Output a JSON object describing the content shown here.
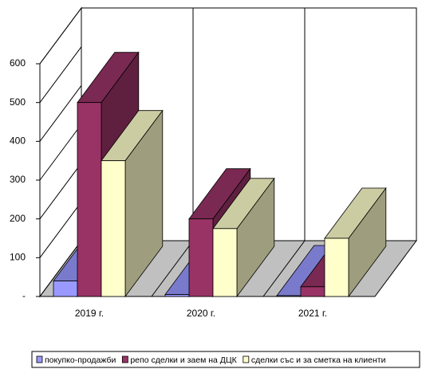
{
  "chart_data": {
    "type": "bar3d",
    "categories": [
      "2019 г.",
      "2020 г.",
      "2021 г."
    ],
    "series": [
      {
        "name": "покупко-продажби",
        "color": "#9999ff",
        "values": [
          40,
          5,
          2
        ]
      },
      {
        "name": "репо сделки и заем на ДЦК",
        "color": "#993366",
        "values": [
          500,
          200,
          25
        ]
      },
      {
        "name": "сделки със и за сметка на клиенти",
        "color": "#ffffcc",
        "values": [
          350,
          175,
          150
        ]
      }
    ],
    "ylim": [
      0,
      600
    ],
    "yticks": [
      {
        "value": 0,
        "label": "-"
      },
      100,
      200,
      300,
      400,
      500,
      600
    ],
    "grid": true,
    "legend": "bottom",
    "floor_color": "#c0c0c0"
  }
}
